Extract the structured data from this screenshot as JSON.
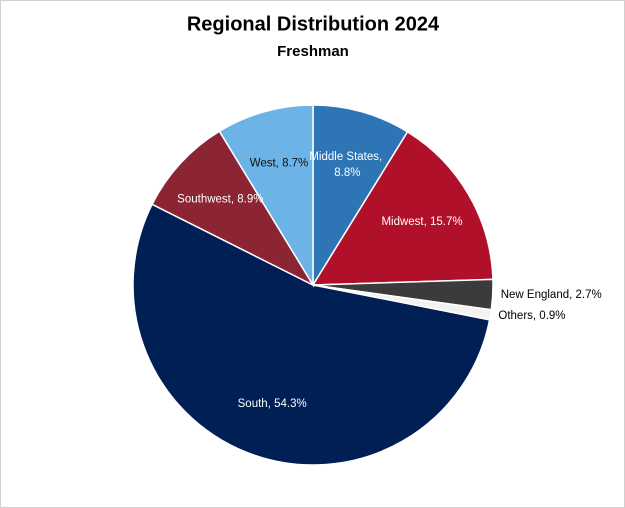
{
  "chart_data": {
    "type": "pie",
    "title": "Regional Distribution 2024",
    "subtitle": "Freshman",
    "categories": [
      "Middle States",
      "Midwest",
      "New England",
      "Others",
      "South",
      "Southwest",
      "West"
    ],
    "values": [
      8.8,
      15.7,
      2.7,
      0.9,
      54.3,
      8.9,
      8.7
    ],
    "value_labels": [
      "Middle States, 8.8%",
      "Midwest, 15.7%",
      "New England, 2.7%",
      "Others, 0.9%",
      "South, 54.3%",
      "Southwest, 8.9%",
      "West, 8.7%"
    ],
    "colors": [
      "#2e75b6",
      "#b0102a",
      "#3b3b3b",
      "#f2f2f2",
      "#001f54",
      "#8b2433",
      "#6cb4e8"
    ]
  }
}
